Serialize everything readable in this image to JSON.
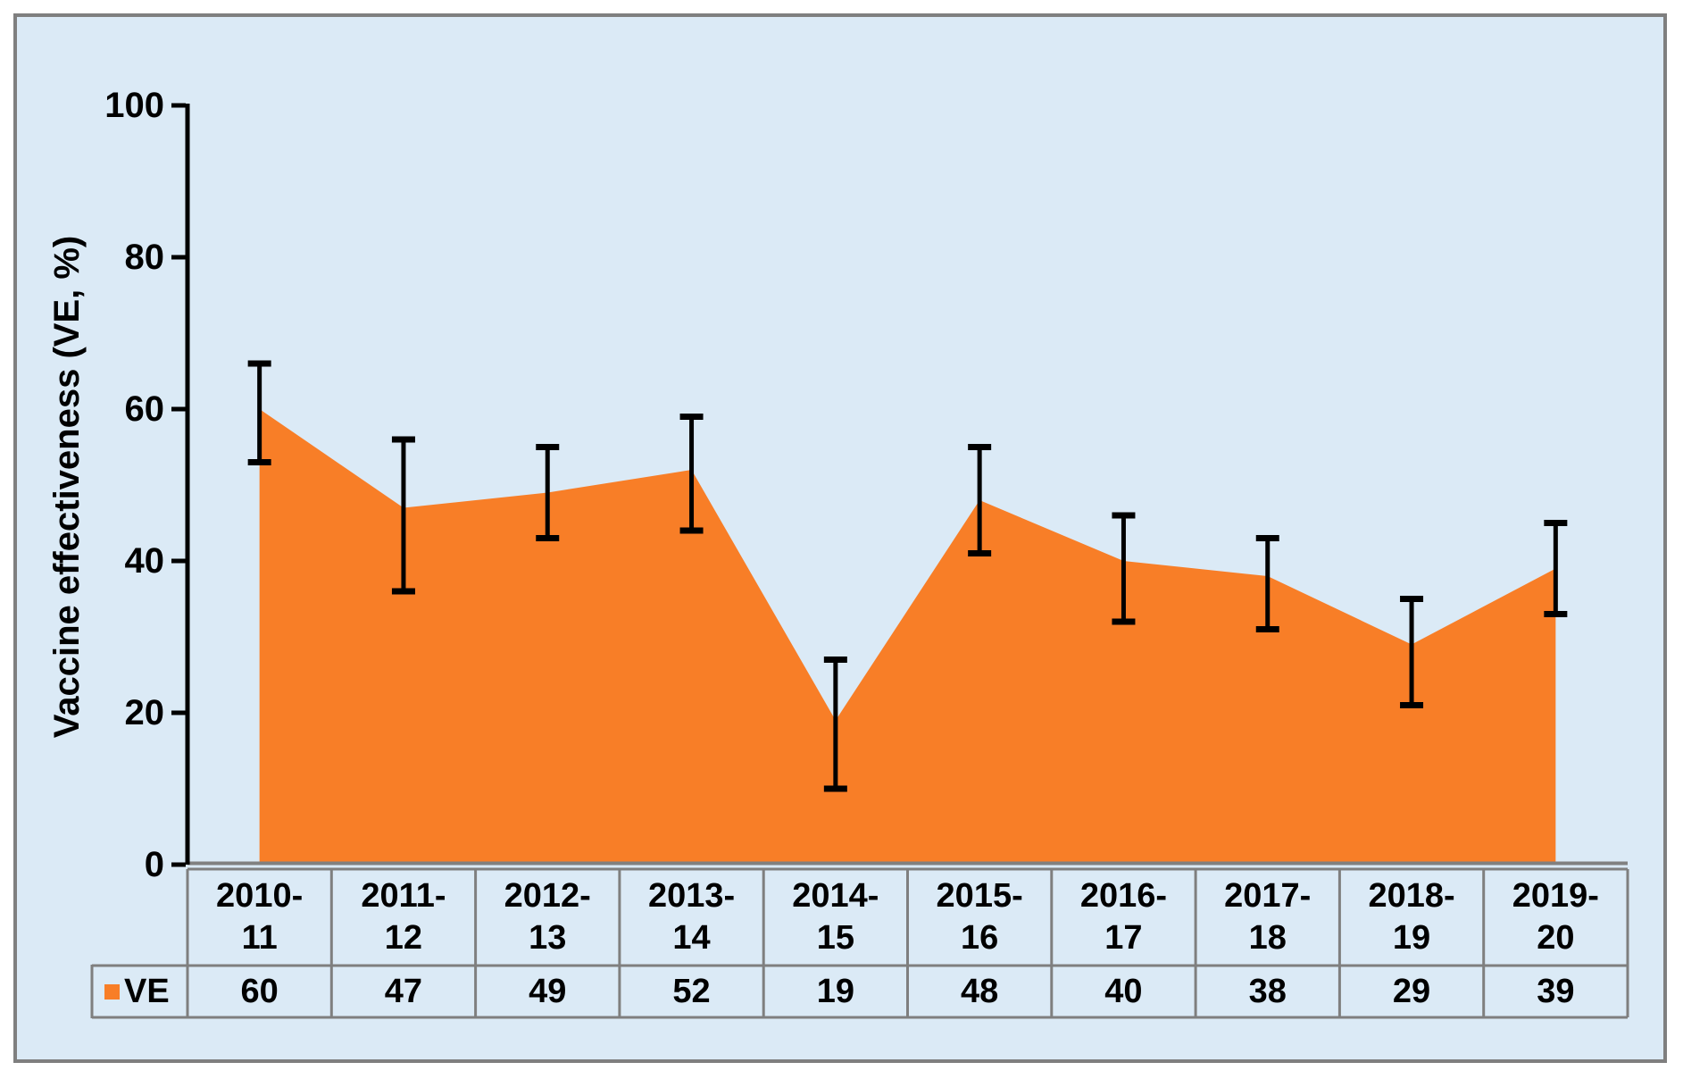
{
  "chart_data": {
    "type": "area",
    "title": "",
    "xlabel": "",
    "ylabel": "Vaccine effectiveness (VE, %)",
    "categories": [
      "2010-11",
      "2011-12",
      "2012-13",
      "2013-14",
      "2014-15",
      "2015-16",
      "2016-17",
      "2017-18",
      "2018-19",
      "2019-20"
    ],
    "series": [
      {
        "name": "VE",
        "values": [
          60,
          47,
          49,
          52,
          19,
          48,
          40,
          38,
          29,
          39
        ],
        "ci_low": [
          53,
          36,
          43,
          44,
          10,
          41,
          32,
          31,
          21,
          33
        ],
        "ci_high": [
          66,
          56,
          55,
          59,
          27,
          55,
          46,
          43,
          35,
          45
        ]
      }
    ],
    "ylim": [
      0,
      100
    ],
    "yticks": [
      0,
      20,
      40,
      60,
      80,
      100
    ],
    "grid": "off",
    "legend_position": "table-left",
    "data_table_shown": true
  },
  "legend": {
    "label": "VE"
  },
  "colors": {
    "area": "#F87E27",
    "background": "#DBEAF6",
    "page": "#FFFFFF",
    "frame_border": "#7F7F7F",
    "table_border": "#7F7F7F",
    "axis": "#000000",
    "error_bar": "#000000",
    "category_axis_line": "#808080",
    "text": "#000000"
  }
}
